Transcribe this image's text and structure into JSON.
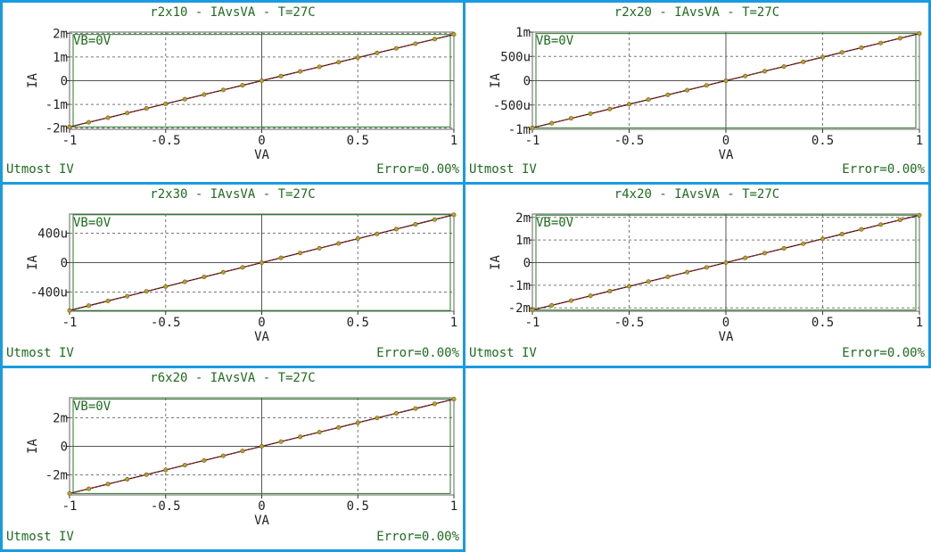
{
  "colors": {
    "border": "#1a9be0",
    "text": "#1f6b1f",
    "measured": "#d02020",
    "simulated_marker": "#80c020",
    "fit_line": "#1a1a1a",
    "frame": "#2a7a2a"
  },
  "panels": [
    {
      "title": "r2x10 - IAvsVA - T=27C",
      "footer_left": "Utmost IV",
      "footer_right": "Error=0.00%",
      "annotation": "VB=0V"
    },
    {
      "title": "r2x20 - IAvsVA - T=27C",
      "footer_left": "Utmost IV",
      "footer_right": "Error=0.00%",
      "annotation": "VB=0V"
    },
    {
      "title": "r2x30 - IAvsVA - T=27C",
      "footer_left": "Utmost IV",
      "footer_right": "Error=0.00%",
      "annotation": "VB=0V"
    },
    {
      "title": "r4x20 - IAvsVA - T=27C",
      "footer_left": "Utmost IV",
      "footer_right": "Error=0.00%",
      "annotation": "VB=0V"
    },
    {
      "title": "r6x20 - IAvsVA - T=27C",
      "footer_left": "Utmost IV",
      "footer_right": "Error=0.00%",
      "annotation": "VB=0V"
    }
  ],
  "chart_data": [
    {
      "type": "line",
      "title": "r2x10 - IAvsVA - T=27C",
      "xlabel": "VA",
      "ylabel": "IA",
      "xlim": [
        -1,
        1
      ],
      "ylim": [
        -0.00205,
        0.00205
      ],
      "xticks": [
        -1,
        -0.5,
        0,
        0.5,
        1
      ],
      "xtick_labels": [
        "-1",
        "-0.5",
        "0",
        "0.5",
        "1"
      ],
      "yticks": [
        -0.002,
        -0.001,
        0,
        0.001,
        0.002
      ],
      "ytick_labels": [
        "-2m",
        "-1m",
        "0",
        "1m",
        "2m"
      ],
      "grid": true,
      "x": [
        -1,
        -0.9,
        -0.8,
        -0.7,
        -0.6,
        -0.5,
        -0.4,
        -0.3,
        -0.2,
        -0.1,
        0,
        0.1,
        0.2,
        0.3,
        0.4,
        0.5,
        0.6,
        0.7,
        0.8,
        0.9,
        1
      ],
      "series": [
        {
          "values": [
            -0.00195,
            -0.001755,
            -0.00156,
            -0.001365,
            -0.00117,
            -0.000975,
            -0.00078,
            -0.000585,
            -0.00039,
            -0.000195,
            0,
            0.000195,
            0.00039,
            0.000585,
            0.00078,
            0.000975,
            0.00117,
            0.001365,
            0.00156,
            0.001755,
            0.00195
          ]
        }
      ]
    },
    {
      "type": "line",
      "title": "r2x20 - IAvsVA - T=27C",
      "xlabel": "VA",
      "ylabel": "IA",
      "xlim": [
        -1,
        1
      ],
      "ylim": [
        -0.001,
        0.001
      ],
      "xticks": [
        -1,
        -0.5,
        0,
        0.5,
        1
      ],
      "xtick_labels": [
        "-1",
        "-0.5",
        "0",
        "0.5",
        "1"
      ],
      "yticks": [
        -0.001,
        -0.0005,
        0,
        0.0005,
        0.001
      ],
      "ytick_labels": [
        "-1m",
        "-500u",
        "0",
        "500u",
        "1m"
      ],
      "grid": true,
      "x": [
        -1,
        -0.9,
        -0.8,
        -0.7,
        -0.6,
        -0.5,
        -0.4,
        -0.3,
        -0.2,
        -0.1,
        0,
        0.1,
        0.2,
        0.3,
        0.4,
        0.5,
        0.6,
        0.7,
        0.8,
        0.9,
        1
      ],
      "series": [
        {
          "values": [
            -0.00097,
            -0.000873,
            -0.000776,
            -0.000679,
            -0.000582,
            -0.000485,
            -0.000388,
            -0.000291,
            -0.000194,
            -9.7e-05,
            0,
            9.7e-05,
            0.000194,
            0.000291,
            0.000388,
            0.000485,
            0.000582,
            0.000679,
            0.000776,
            0.000873,
            0.00097
          ]
        }
      ]
    },
    {
      "type": "line",
      "title": "r2x30 - IAvsVA - T=27C",
      "xlabel": "VA",
      "ylabel": "IA",
      "xlim": [
        -1,
        1
      ],
      "ylim": [
        -0.00066,
        0.00066
      ],
      "xticks": [
        -1,
        -0.5,
        0,
        0.5,
        1
      ],
      "xtick_labels": [
        "-1",
        "-0.5",
        "0",
        "0.5",
        "1"
      ],
      "yticks": [
        -0.0004,
        0,
        0.0004
      ],
      "ytick_labels": [
        "-400u",
        "0",
        "400u"
      ],
      "grid": true,
      "x": [
        -1,
        -0.9,
        -0.8,
        -0.7,
        -0.6,
        -0.5,
        -0.4,
        -0.3,
        -0.2,
        -0.1,
        0,
        0.1,
        0.2,
        0.3,
        0.4,
        0.5,
        0.6,
        0.7,
        0.8,
        0.9,
        1
      ],
      "series": [
        {
          "values": [
            -0.00065,
            -0.000585,
            -0.00052,
            -0.000455,
            -0.00039,
            -0.000325,
            -0.00026,
            -0.000195,
            -0.00013,
            -6.5e-05,
            0,
            6.5e-05,
            0.00013,
            0.000195,
            0.00026,
            0.000325,
            0.00039,
            0.000455,
            0.00052,
            0.000585,
            0.00065
          ]
        }
      ]
    },
    {
      "type": "line",
      "title": "r4x20 - IAvsVA - T=27C",
      "xlabel": "VA",
      "ylabel": "IA",
      "xlim": [
        -1,
        1
      ],
      "ylim": [
        -0.00215,
        0.00215
      ],
      "xticks": [
        -1,
        -0.5,
        0,
        0.5,
        1
      ],
      "xtick_labels": [
        "-1",
        "-0.5",
        "0",
        "0.5",
        "1"
      ],
      "yticks": [
        -0.002,
        -0.001,
        0,
        0.001,
        0.002
      ],
      "ytick_labels": [
        "-2m",
        "-1m",
        "0",
        "1m",
        "2m"
      ],
      "grid": true,
      "x": [
        -1,
        -0.9,
        -0.8,
        -0.7,
        -0.6,
        -0.5,
        -0.4,
        -0.3,
        -0.2,
        -0.1,
        0,
        0.1,
        0.2,
        0.3,
        0.4,
        0.5,
        0.6,
        0.7,
        0.8,
        0.9,
        1
      ],
      "series": [
        {
          "values": [
            -0.0021,
            -0.00189,
            -0.00168,
            -0.00147,
            -0.00126,
            -0.00105,
            -0.00084,
            -0.00063,
            -0.00042,
            -0.00021,
            0,
            0.00021,
            0.00042,
            0.00063,
            0.00084,
            0.00105,
            0.00126,
            0.00147,
            0.00168,
            0.00189,
            0.0021
          ]
        }
      ]
    },
    {
      "type": "line",
      "title": "r6x20 - IAvsVA - T=27C",
      "xlabel": "VA",
      "ylabel": "IA",
      "xlim": [
        -1,
        1
      ],
      "ylim": [
        -0.0034,
        0.0034
      ],
      "xticks": [
        -1,
        -0.5,
        0,
        0.5,
        1
      ],
      "xtick_labels": [
        "-1",
        "-0.5",
        "0",
        "0.5",
        "1"
      ],
      "yticks": [
        -0.002,
        0,
        0.002
      ],
      "ytick_labels": [
        "-2m",
        "0",
        "2m"
      ],
      "grid": true,
      "x": [
        -1,
        -0.9,
        -0.8,
        -0.7,
        -0.6,
        -0.5,
        -0.4,
        -0.3,
        -0.2,
        -0.1,
        0,
        0.1,
        0.2,
        0.3,
        0.4,
        0.5,
        0.6,
        0.7,
        0.8,
        0.9,
        1
      ],
      "series": [
        {
          "values": [
            -0.0033,
            -0.00297,
            -0.00264,
            -0.00231,
            -0.00198,
            -0.00165,
            -0.00132,
            -0.00099,
            -0.00066,
            -0.00033,
            0,
            0.00033,
            0.00066,
            0.00099,
            0.00132,
            0.00165,
            0.00198,
            0.00231,
            0.00264,
            0.00297,
            0.0033
          ]
        }
      ]
    }
  ]
}
